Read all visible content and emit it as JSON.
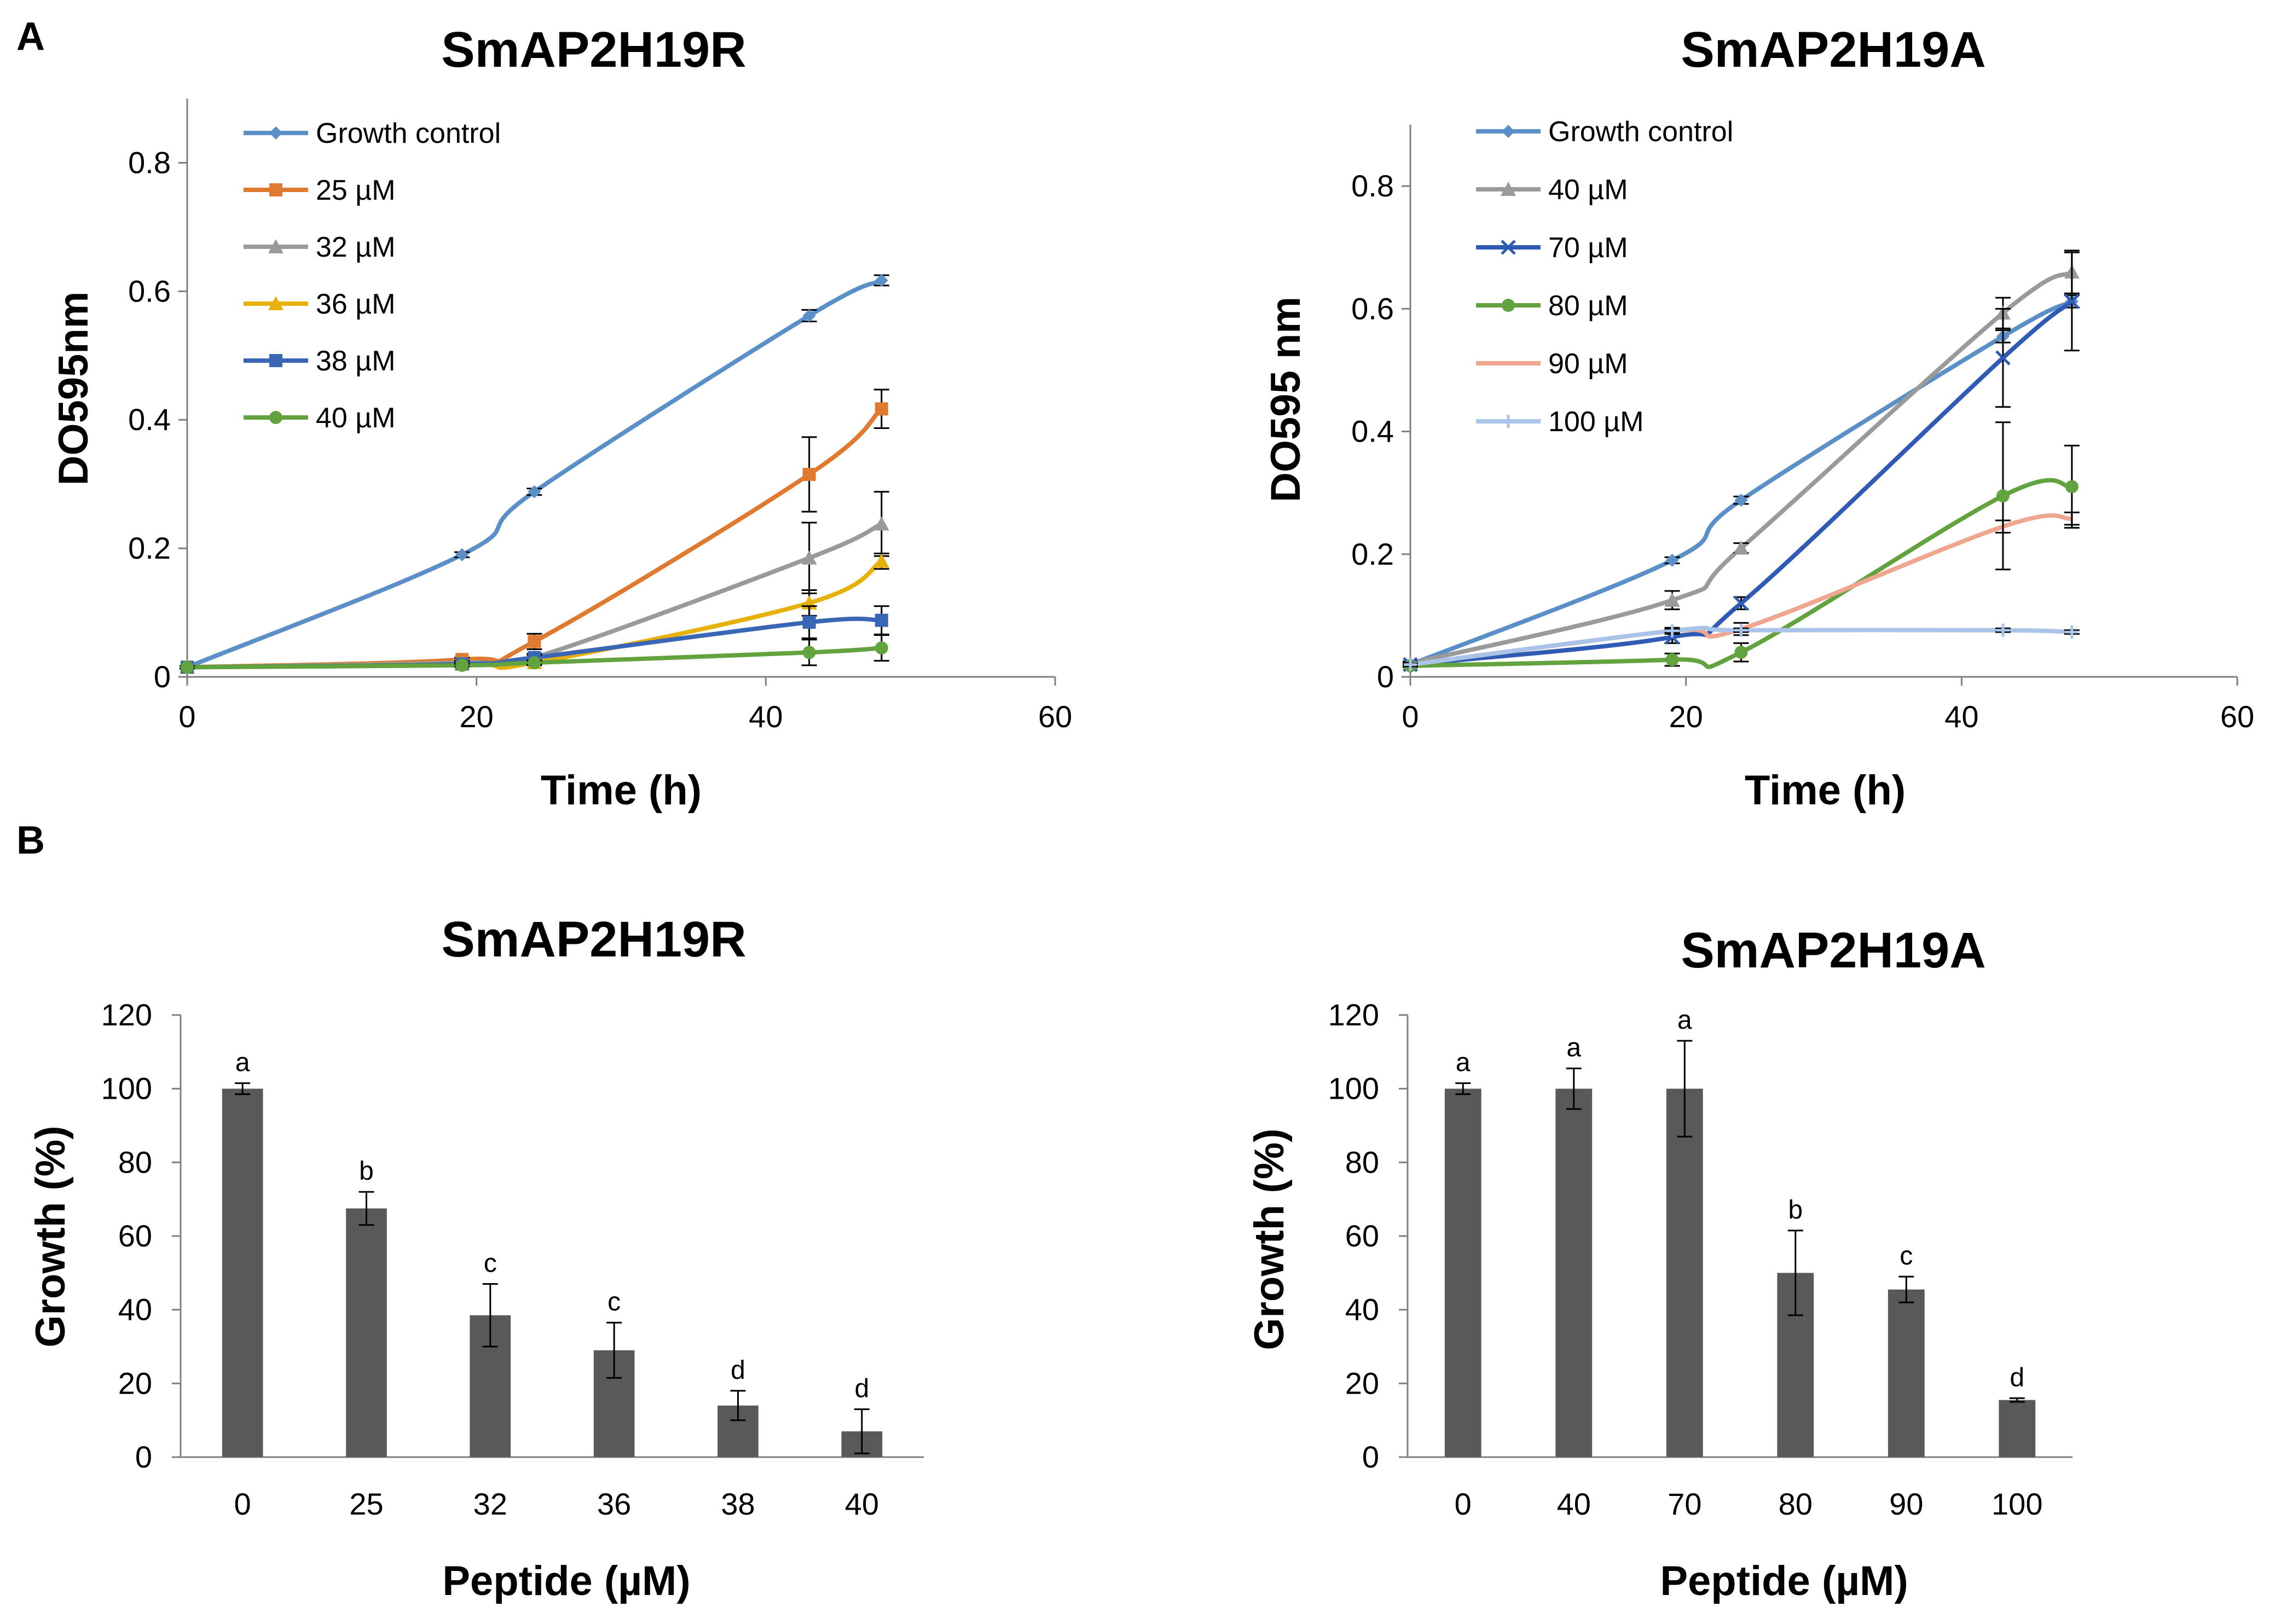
{
  "panel_labels": {
    "a": "A",
    "b": "B"
  },
  "chart_data": [
    {
      "id": "lineR",
      "type": "line",
      "title": "SmAP2H19R",
      "xlabel": "Time (h)",
      "ylabel": "DO595nm",
      "xlim": [
        0,
        60
      ],
      "ylim": [
        0,
        0.9
      ],
      "xticks": [
        0,
        20,
        40,
        60
      ],
      "yticks": [
        0,
        0.2,
        0.4,
        0.6,
        0.8
      ],
      "ytick_labels": [
        "0",
        "0.2",
        "0.4",
        "0.6",
        "0.8"
      ],
      "x": [
        0,
        19,
        24,
        43,
        48
      ],
      "series": [
        {
          "name": "Growth control",
          "color": "#5b8fc7",
          "marker": "diamond",
          "values": [
            0.015,
            0.19,
            0.288,
            0.562,
            0.617
          ],
          "err": [
            0.002,
            0.004,
            0.005,
            0.009,
            0.008
          ]
        },
        {
          "name": "25 µM",
          "color": "#e07a30",
          "marker": "square",
          "values": [
            0.015,
            0.027,
            0.055,
            0.315,
            0.417
          ],
          "err": [
            0.002,
            0.003,
            0.012,
            0.058,
            0.03
          ]
        },
        {
          "name": "32 µM",
          "color": "#9a9a9a",
          "marker": "triangle",
          "values": [
            0.015,
            0.022,
            0.03,
            0.185,
            0.238
          ],
          "err": [
            0.002,
            0.003,
            0.006,
            0.055,
            0.05
          ]
        },
        {
          "name": "36 µM",
          "color": "#e7b10a",
          "marker": "triangle",
          "values": [
            0.015,
            0.02,
            0.022,
            0.115,
            0.18
          ],
          "err": [
            0.002,
            0.003,
            0.004,
            0.02,
            0.012
          ]
        },
        {
          "name": "38 µM",
          "color": "#3a67b5",
          "marker": "square",
          "values": [
            0.015,
            0.02,
            0.03,
            0.085,
            0.088
          ],
          "err": [
            0.002,
            0.002,
            0.004,
            0.025,
            0.022
          ]
        },
        {
          "name": "40 µM",
          "color": "#62a340",
          "marker": "circle",
          "values": [
            0.015,
            0.018,
            0.022,
            0.038,
            0.045
          ],
          "err": [
            0.002,
            0.002,
            0.003,
            0.02,
            0.02
          ]
        }
      ]
    },
    {
      "id": "lineA",
      "type": "line",
      "title": "SmAP2H19A",
      "xlabel": "Time (h)",
      "ylabel": "DO595 nm",
      "xlim": [
        0,
        60
      ],
      "ylim": [
        0,
        0.9
      ],
      "xticks": [
        0,
        20,
        40,
        60
      ],
      "yticks": [
        0,
        0.2,
        0.4,
        0.6,
        0.8
      ],
      "ytick_labels": [
        "0",
        "0.2",
        "0.4",
        "0.6",
        "0.8"
      ],
      "x": [
        0,
        19,
        24,
        43,
        48
      ],
      "series": [
        {
          "name": "Growth control",
          "color": "#5b8fc7",
          "marker": "diamond",
          "values": [
            0.02,
            0.19,
            0.288,
            0.555,
            0.612
          ],
          "err": [
            0.002,
            0.005,
            0.006,
            0.01,
            0.01
          ]
        },
        {
          "name": "40 µM",
          "color": "#9a9a9a",
          "marker": "triangle",
          "values": [
            0.022,
            0.125,
            0.21,
            0.593,
            0.66
          ],
          "err": [
            0.003,
            0.015,
            0.008,
            0.025,
            0.035
          ]
        },
        {
          "name": "70 µM",
          "color": "#2f5bb5",
          "marker": "x",
          "values": [
            0.02,
            0.065,
            0.12,
            0.52,
            0.612
          ],
          "err": [
            0.003,
            0.01,
            0.01,
            0.08,
            0.08
          ]
        },
        {
          "name": "80 µM",
          "color": "#62a340",
          "marker": "circle",
          "values": [
            0.018,
            0.028,
            0.04,
            0.295,
            0.31
          ],
          "err": [
            0.002,
            0.01,
            0.015,
            0.12,
            0.067
          ]
        },
        {
          "name": "90 µM",
          "color": "#f0a58e",
          "marker": "none",
          "values": [
            0.02,
            0.075,
            0.078,
            0.245,
            0.258
          ],
          "err": [
            0.003,
            0.005,
            0.01,
            0.01,
            0.01
          ]
        },
        {
          "name": "100 µM",
          "color": "#a9c4e8",
          "marker": "plus",
          "values": [
            0.02,
            0.075,
            0.076,
            0.076,
            0.073
          ],
          "err": [
            0.002,
            0.003,
            0.003,
            0.003,
            0.003
          ]
        }
      ]
    },
    {
      "id": "barR",
      "type": "bar",
      "title": "SmAP2H19R",
      "xlabel": "Peptide (µM)",
      "ylabel": "Growth (%)",
      "ylim": [
        0,
        120
      ],
      "yticks": [
        0,
        20,
        40,
        60,
        80,
        100,
        120
      ],
      "categories": [
        "0",
        "25",
        "32",
        "36",
        "38",
        "40"
      ],
      "values": [
        100,
        67.5,
        38.5,
        29,
        14,
        7
      ],
      "err": [
        1.5,
        4.5,
        8.5,
        7.5,
        4,
        6
      ],
      "letters": [
        "a",
        "b",
        "c",
        "c",
        "d",
        "d"
      ],
      "color": "#595959"
    },
    {
      "id": "barA",
      "type": "bar",
      "title": "SmAP2H19A",
      "xlabel": "Peptide (µM)",
      "ylabel": "Growth (%)",
      "ylim": [
        0,
        120
      ],
      "yticks": [
        0,
        20,
        40,
        60,
        80,
        100,
        120
      ],
      "categories": [
        "0",
        "40",
        "70",
        "80",
        "90",
        "100"
      ],
      "values": [
        100,
        100,
        100,
        50,
        45.5,
        15.5
      ],
      "err": [
        1.5,
        5.5,
        13,
        11.5,
        3.5,
        0.5
      ],
      "letters": [
        "a",
        "a",
        "a",
        "b",
        "c",
        "d"
      ],
      "color": "#595959"
    }
  ]
}
